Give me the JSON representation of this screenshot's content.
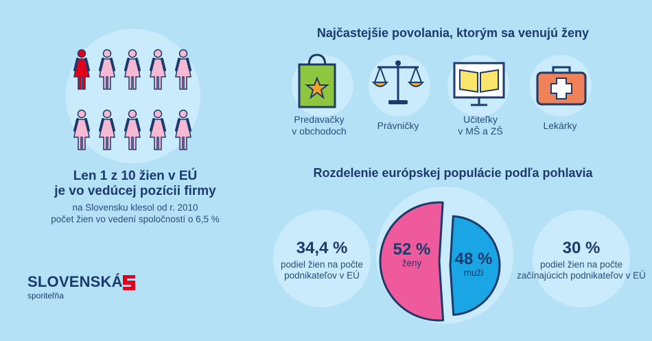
{
  "left": {
    "headline_line1": "Len 1 z 10 žien v EÚ",
    "headline_line2": "je vo vedúcej pozícii firmy",
    "sub_line1": "na Slovensku klesol od r. 2010",
    "sub_line2": "počet žien vo vedení spoločností o 6,5 %",
    "highlight_color": "#e3001b",
    "figure_color": "#f6b9d4"
  },
  "logo": {
    "name": "SLOVENSKÁ",
    "sub": "sporiteľňa"
  },
  "occupations": {
    "title": "Najčastejšie povolania, ktorým sa venujú ženy",
    "items": [
      {
        "line1": "Predavačky",
        "line2": "v obchodoch",
        "icon": "shopping-bag-icon"
      },
      {
        "line1": "Právničky",
        "line2": "",
        "icon": "scales-icon"
      },
      {
        "line1": "Učiteľky",
        "line2": "v MŠ a ZŠ",
        "icon": "book-board-icon"
      },
      {
        "line1": "Lekárky",
        "line2": "",
        "icon": "medical-kit-icon"
      }
    ]
  },
  "population": {
    "title": "Rozdelenie európskej populácie podľa pohlavia",
    "left_stat": {
      "value": "34,4 %",
      "line1": "podiel žien na počte",
      "line2": "podnikateľov v EÚ"
    },
    "right_stat": {
      "value": "30 %",
      "line1": "podiel žien na počte",
      "line2": "začínajúcich podnikateľov v EÚ"
    }
  },
  "chart_data": {
    "type": "pie",
    "slices": [
      {
        "label": "ženy",
        "value": 52,
        "display": "52 %",
        "color": "#ee5a9b"
      },
      {
        "label": "muži",
        "value": 48,
        "display": "48 %",
        "color": "#1aa6e4"
      }
    ]
  }
}
